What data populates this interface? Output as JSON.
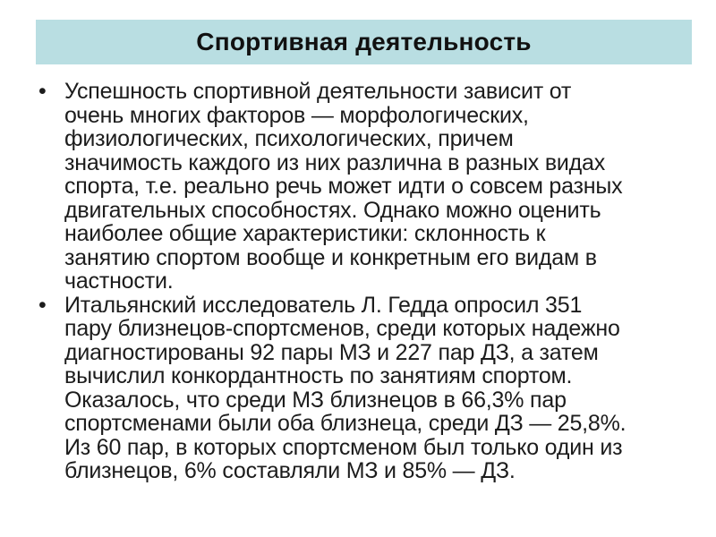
{
  "slide": {
    "title": "Спортивная деятельность",
    "bullet_char": "•",
    "bullets": [
      {
        "text": "Успешность спортивной деятельности зависит от\nочень многих факторов — морфологических,\nфизиологических, психологических, причем\nзначимость каждого из них различна в разных видах\nспорта, т.е. реально речь может идти о совсем разных\nдвигательных способностях. Однако можно оценить\nнаиболее общие характеристики: склонность к\nзанятию спортом вообще и конкретным его видам в\nчастности."
      },
      {
        "text": "Итальянский исследователь Л. Гедда опросил 351\nпару близнецов-спортсменов, среди которых надежно\nдиагностированы 92 пары МЗ и 227 пар ДЗ, а затем\nвычислил конкордантность по занятиям спортом.\nОказалось, что среди МЗ близнецов в 66,3% пар\nспортсменами были оба близнеца, среди ДЗ — 25,8%.\nИз 60 пар, в которых спортсменом был только один из\nблизнецов, 6% составляли МЗ и 85% — ДЗ."
      }
    ],
    "colors": {
      "banner_bg": "#b9dee2",
      "text_color": "#1c1c1c",
      "page_bg": "#ffffff"
    }
  }
}
